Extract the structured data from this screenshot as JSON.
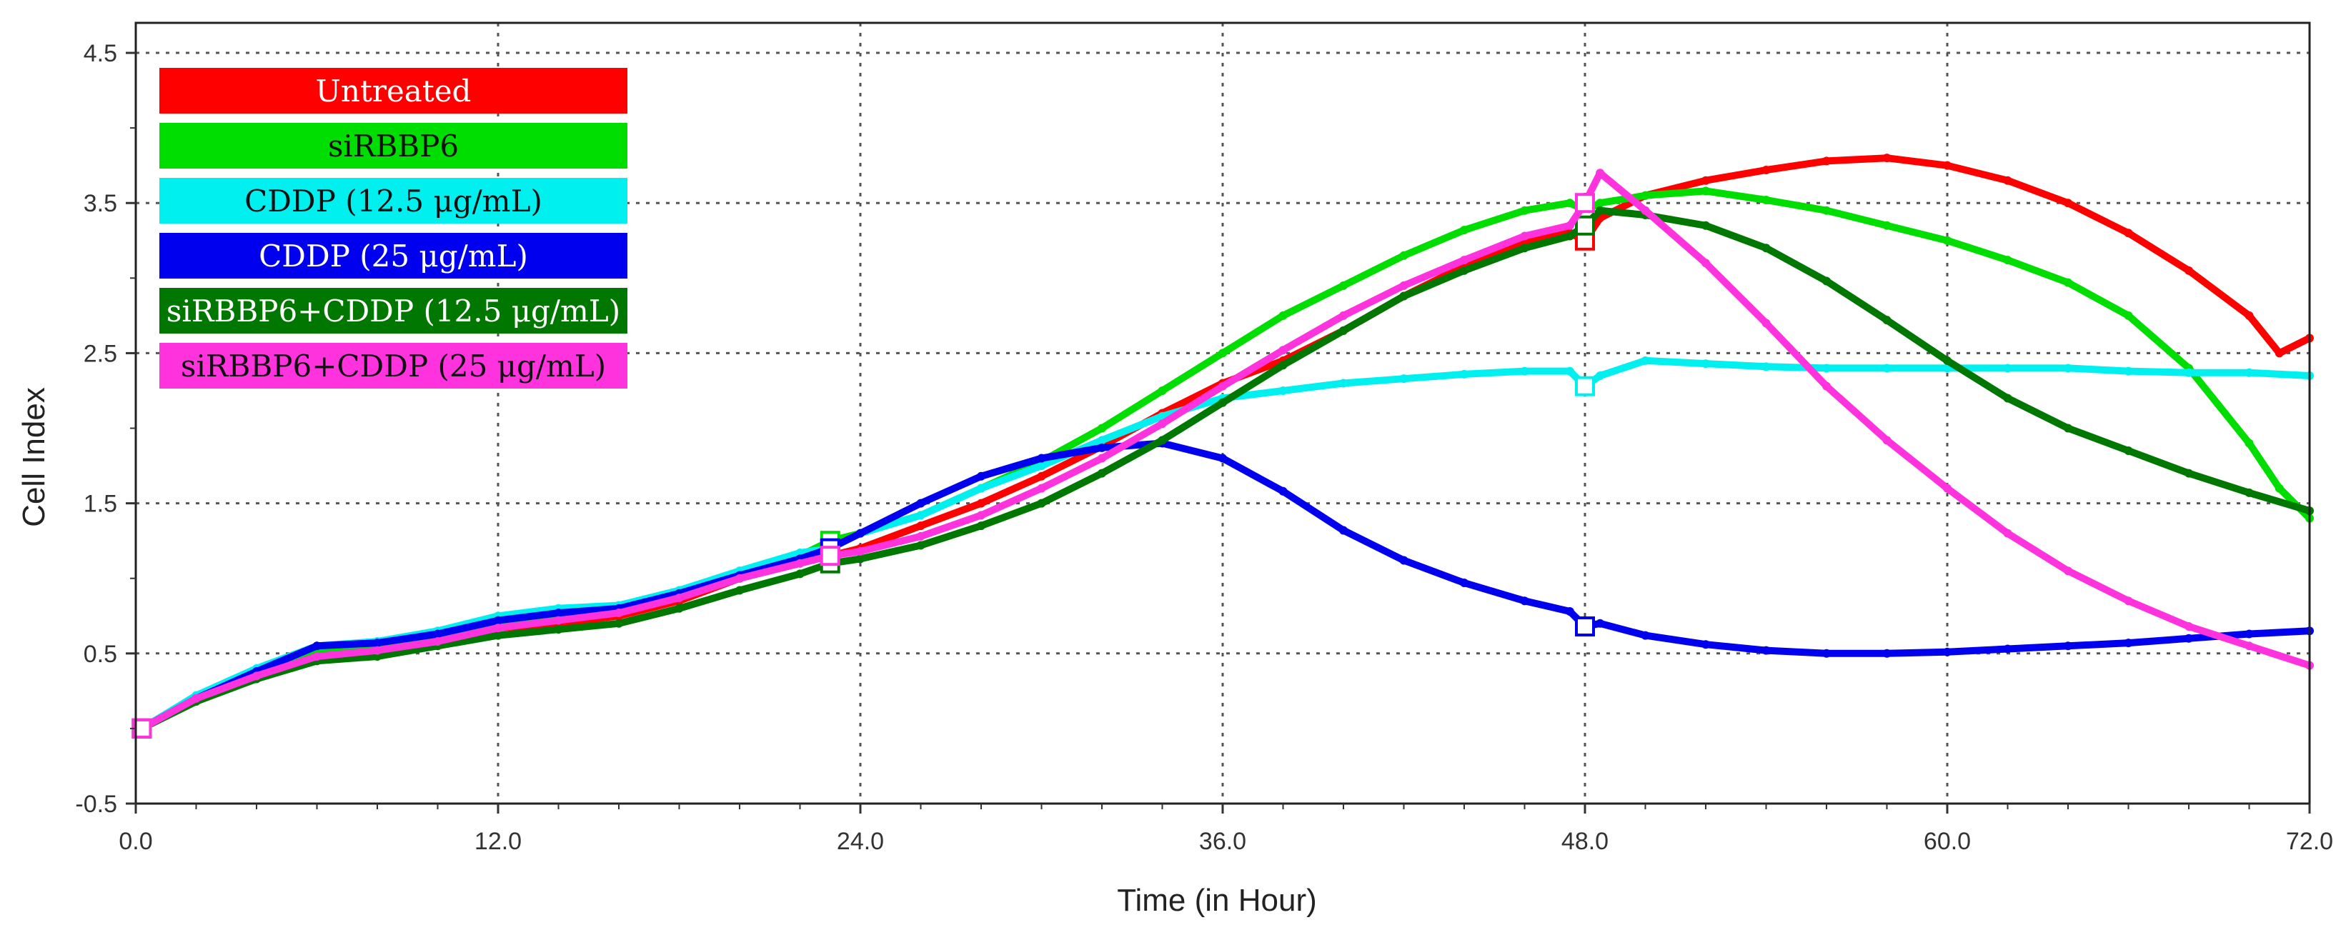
{
  "chart_data": {
    "type": "line",
    "title": "",
    "xlabel": "Time (in Hour)",
    "ylabel": "Cell Index",
    "xlim": [
      0,
      72
    ],
    "ylim": [
      -0.5,
      4.7
    ],
    "x_ticks": [
      0,
      12,
      24,
      36,
      48,
      60,
      72
    ],
    "x_tick_labels": [
      "0.0",
      "12.0",
      "24.0",
      "36.0",
      "48.0",
      "60.0",
      "72.0"
    ],
    "y_ticks": [
      -0.5,
      0.5,
      1.5,
      2.5,
      3.5,
      4.5
    ],
    "y_tick_labels": [
      "-0.5",
      "0.5",
      "1.5",
      "2.5",
      "3.5",
      "4.5"
    ],
    "grid": true,
    "legend_position": "top-left",
    "series": [
      {
        "name": "Untreated",
        "color": "#ff0000",
        "points": [
          [
            0.2,
            0.0
          ],
          [
            2,
            0.2
          ],
          [
            4,
            0.35
          ],
          [
            6,
            0.5
          ],
          [
            8,
            0.53
          ],
          [
            10,
            0.6
          ],
          [
            12,
            0.67
          ],
          [
            14,
            0.7
          ],
          [
            16,
            0.75
          ],
          [
            18,
            0.85
          ],
          [
            20,
            1.0
          ],
          [
            22,
            1.1
          ],
          [
            23,
            1.15
          ],
          [
            24,
            1.2
          ],
          [
            26,
            1.35
          ],
          [
            28,
            1.5
          ],
          [
            30,
            1.68
          ],
          [
            32,
            1.88
          ],
          [
            34,
            2.1
          ],
          [
            36,
            2.3
          ],
          [
            38,
            2.45
          ],
          [
            40,
            2.65
          ],
          [
            42,
            2.88
          ],
          [
            44,
            3.08
          ],
          [
            46,
            3.25
          ],
          [
            47.5,
            3.3
          ],
          [
            48,
            3.25
          ],
          [
            48.5,
            3.4
          ],
          [
            50,
            3.55
          ],
          [
            52,
            3.65
          ],
          [
            54,
            3.72
          ],
          [
            56,
            3.78
          ],
          [
            58,
            3.8
          ],
          [
            60,
            3.75
          ],
          [
            62,
            3.65
          ],
          [
            64,
            3.5
          ],
          [
            66,
            3.3
          ],
          [
            68,
            3.05
          ],
          [
            70,
            2.75
          ],
          [
            71,
            2.5
          ],
          [
            72,
            2.6
          ]
        ]
      },
      {
        "name": "siRBBP6",
        "color": "#00dd00",
        "points": [
          [
            0.2,
            0.0
          ],
          [
            2,
            0.2
          ],
          [
            4,
            0.37
          ],
          [
            6,
            0.52
          ],
          [
            8,
            0.55
          ],
          [
            10,
            0.62
          ],
          [
            12,
            0.7
          ],
          [
            14,
            0.75
          ],
          [
            16,
            0.8
          ],
          [
            18,
            0.9
          ],
          [
            20,
            1.05
          ],
          [
            22,
            1.15
          ],
          [
            23,
            1.25
          ],
          [
            24,
            1.3
          ],
          [
            26,
            1.42
          ],
          [
            28,
            1.6
          ],
          [
            30,
            1.78
          ],
          [
            32,
            2.0
          ],
          [
            34,
            2.25
          ],
          [
            36,
            2.5
          ],
          [
            38,
            2.75
          ],
          [
            40,
            2.95
          ],
          [
            42,
            3.15
          ],
          [
            44,
            3.32
          ],
          [
            46,
            3.45
          ],
          [
            47.5,
            3.5
          ],
          [
            48,
            3.45
          ],
          [
            48.5,
            3.5
          ],
          [
            50,
            3.55
          ],
          [
            52,
            3.58
          ],
          [
            54,
            3.52
          ],
          [
            56,
            3.45
          ],
          [
            58,
            3.35
          ],
          [
            60,
            3.25
          ],
          [
            62,
            3.12
          ],
          [
            64,
            2.97
          ],
          [
            66,
            2.75
          ],
          [
            68,
            2.4
          ],
          [
            70,
            1.9
          ],
          [
            71,
            1.6
          ],
          [
            72,
            1.4
          ]
        ]
      },
      {
        "name": "CDDP (12.5 μg/mL)",
        "color": "#00f0f0",
        "points": [
          [
            0.2,
            0.0
          ],
          [
            2,
            0.22
          ],
          [
            4,
            0.4
          ],
          [
            6,
            0.55
          ],
          [
            8,
            0.58
          ],
          [
            10,
            0.65
          ],
          [
            12,
            0.75
          ],
          [
            14,
            0.8
          ],
          [
            16,
            0.82
          ],
          [
            18,
            0.92
          ],
          [
            20,
            1.05
          ],
          [
            22,
            1.17
          ],
          [
            23,
            1.2
          ],
          [
            24,
            1.3
          ],
          [
            26,
            1.42
          ],
          [
            28,
            1.6
          ],
          [
            30,
            1.75
          ],
          [
            32,
            1.92
          ],
          [
            34,
            2.08
          ],
          [
            36,
            2.2
          ],
          [
            38,
            2.25
          ],
          [
            40,
            2.3
          ],
          [
            42,
            2.33
          ],
          [
            44,
            2.36
          ],
          [
            46,
            2.38
          ],
          [
            47.5,
            2.38
          ],
          [
            48,
            2.28
          ],
          [
            48.5,
            2.35
          ],
          [
            50,
            2.45
          ],
          [
            52,
            2.43
          ],
          [
            54,
            2.41
          ],
          [
            56,
            2.4
          ],
          [
            58,
            2.4
          ],
          [
            60,
            2.4
          ],
          [
            62,
            2.4
          ],
          [
            64,
            2.4
          ],
          [
            66,
            2.38
          ],
          [
            68,
            2.37
          ],
          [
            70,
            2.37
          ],
          [
            72,
            2.35
          ]
        ]
      },
      {
        "name": "CDDP (25 μg/mL)",
        "color": "#0000ee",
        "points": [
          [
            0.2,
            0.0
          ],
          [
            2,
            0.2
          ],
          [
            4,
            0.38
          ],
          [
            6,
            0.55
          ],
          [
            8,
            0.57
          ],
          [
            10,
            0.63
          ],
          [
            12,
            0.72
          ],
          [
            14,
            0.77
          ],
          [
            16,
            0.8
          ],
          [
            18,
            0.9
          ],
          [
            20,
            1.02
          ],
          [
            22,
            1.13
          ],
          [
            23,
            1.2
          ],
          [
            24,
            1.3
          ],
          [
            26,
            1.5
          ],
          [
            28,
            1.68
          ],
          [
            30,
            1.8
          ],
          [
            32,
            1.87
          ],
          [
            34,
            1.9
          ],
          [
            36,
            1.8
          ],
          [
            38,
            1.58
          ],
          [
            40,
            1.32
          ],
          [
            42,
            1.12
          ],
          [
            44,
            0.97
          ],
          [
            46,
            0.85
          ],
          [
            47.5,
            0.78
          ],
          [
            48,
            0.68
          ],
          [
            48.5,
            0.7
          ],
          [
            50,
            0.62
          ],
          [
            52,
            0.56
          ],
          [
            54,
            0.52
          ],
          [
            56,
            0.5
          ],
          [
            58,
            0.5
          ],
          [
            60,
            0.51
          ],
          [
            62,
            0.53
          ],
          [
            64,
            0.55
          ],
          [
            66,
            0.57
          ],
          [
            68,
            0.6
          ],
          [
            70,
            0.63
          ],
          [
            72,
            0.65
          ]
        ]
      },
      {
        "name": "siRBBP6+CDDP (12.5 μg/mL)",
        "color": "#007700",
        "points": [
          [
            0.2,
            0.0
          ],
          [
            2,
            0.18
          ],
          [
            4,
            0.33
          ],
          [
            6,
            0.45
          ],
          [
            8,
            0.48
          ],
          [
            10,
            0.55
          ],
          [
            12,
            0.62
          ],
          [
            14,
            0.66
          ],
          [
            16,
            0.7
          ],
          [
            18,
            0.8
          ],
          [
            20,
            0.92
          ],
          [
            22,
            1.03
          ],
          [
            23,
            1.1
          ],
          [
            24,
            1.13
          ],
          [
            26,
            1.22
          ],
          [
            28,
            1.35
          ],
          [
            30,
            1.5
          ],
          [
            32,
            1.7
          ],
          [
            34,
            1.92
          ],
          [
            36,
            2.17
          ],
          [
            38,
            2.42
          ],
          [
            40,
            2.65
          ],
          [
            42,
            2.88
          ],
          [
            44,
            3.05
          ],
          [
            46,
            3.2
          ],
          [
            47.5,
            3.28
          ],
          [
            48,
            3.35
          ],
          [
            48.5,
            3.45
          ],
          [
            50,
            3.42
          ],
          [
            52,
            3.35
          ],
          [
            54,
            3.2
          ],
          [
            56,
            2.98
          ],
          [
            58,
            2.72
          ],
          [
            60,
            2.45
          ],
          [
            62,
            2.2
          ],
          [
            64,
            2.0
          ],
          [
            66,
            1.85
          ],
          [
            68,
            1.7
          ],
          [
            70,
            1.57
          ],
          [
            72,
            1.45
          ]
        ]
      },
      {
        "name": "siRBBP6+CDDP (25 μg/mL)",
        "color": "#ff33dd",
        "points": [
          [
            0.2,
            0.0
          ],
          [
            2,
            0.2
          ],
          [
            4,
            0.35
          ],
          [
            6,
            0.48
          ],
          [
            8,
            0.52
          ],
          [
            10,
            0.58
          ],
          [
            12,
            0.67
          ],
          [
            14,
            0.72
          ],
          [
            16,
            0.77
          ],
          [
            18,
            0.87
          ],
          [
            20,
            1.0
          ],
          [
            22,
            1.1
          ],
          [
            23,
            1.15
          ],
          [
            24,
            1.18
          ],
          [
            26,
            1.28
          ],
          [
            28,
            1.42
          ],
          [
            30,
            1.6
          ],
          [
            32,
            1.8
          ],
          [
            34,
            2.03
          ],
          [
            36,
            2.28
          ],
          [
            38,
            2.52
          ],
          [
            40,
            2.75
          ],
          [
            42,
            2.95
          ],
          [
            44,
            3.12
          ],
          [
            46,
            3.28
          ],
          [
            47.5,
            3.35
          ],
          [
            48,
            3.5
          ],
          [
            48.5,
            3.7
          ],
          [
            50,
            3.45
          ],
          [
            52,
            3.1
          ],
          [
            54,
            2.7
          ],
          [
            56,
            2.28
          ],
          [
            58,
            1.92
          ],
          [
            60,
            1.6
          ],
          [
            62,
            1.3
          ],
          [
            64,
            1.05
          ],
          [
            66,
            0.85
          ],
          [
            68,
            0.68
          ],
          [
            70,
            0.55
          ],
          [
            72,
            0.42
          ]
        ]
      }
    ]
  }
}
